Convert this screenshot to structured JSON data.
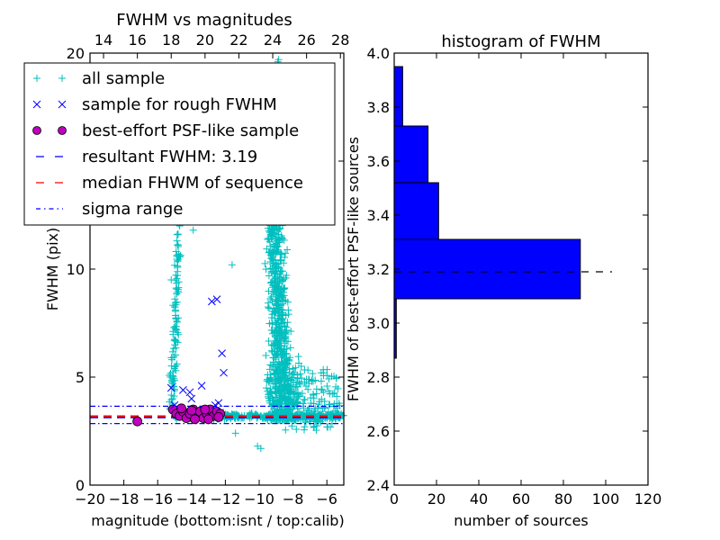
{
  "chart_data": [
    {
      "type": "scatter",
      "title": "FWHM vs magnitudes",
      "xlabel": "magnitude (bottom:isnt / top:calib)",
      "ylabel": "FWHM (pix)",
      "xlim": [
        -20,
        -5
      ],
      "ylim": [
        0,
        20
      ],
      "top_xlim": [
        13.2,
        28.2
      ],
      "xticks": [
        -20,
        -18,
        -16,
        -14,
        -12,
        -10,
        -8,
        -6
      ],
      "xtick_labels": [
        "−20",
        "−18",
        "−16",
        "−14",
        "−12",
        "−10",
        "−8",
        "−6"
      ],
      "top_xticks": [
        14,
        16,
        18,
        20,
        22,
        24,
        26,
        28
      ],
      "top_xtick_labels": [
        "14",
        "16",
        "18",
        "20",
        "22",
        "24",
        "26",
        "28"
      ],
      "yticks": [
        0,
        5,
        10,
        15,
        20
      ],
      "ytick_labels": [
        "0",
        "5",
        "10",
        "15",
        "20"
      ],
      "legend_position": "upper-left",
      "legend": [
        {
          "label": "all sample",
          "marker": "plus",
          "color": "#00bfbf"
        },
        {
          "label": "sample for rough FWHM",
          "marker": "x",
          "color": "#0000ff"
        },
        {
          "label": "best-effort PSF-like sample",
          "marker": "circle",
          "color": "#bf00bf"
        },
        {
          "label": "resultant FWHM: 3.19",
          "marker": "dashed",
          "color": "#0000ff"
        },
        {
          "label": "median FHWM of sequence",
          "marker": "dashed",
          "color": "#ff0000"
        },
        {
          "label": "sigma range",
          "marker": "dashdot",
          "color": "#0000ff"
        }
      ],
      "lines": {
        "resultant_fwhm": 3.19,
        "median_fwhm": 3.19,
        "sigma_range": [
          2.85,
          3.65
        ]
      },
      "series": [
        {
          "name": "sample for rough FWHM",
          "color": "#0000ff",
          "points": [
            [
              -12.8,
              8.5
            ],
            [
              -12.5,
              8.6
            ],
            [
              -12.2,
              6.1
            ],
            [
              -12.1,
              5.2
            ],
            [
              -15.2,
              4.5
            ],
            [
              -14.5,
              4.4
            ],
            [
              -14.0,
              4.0
            ],
            [
              -13.4,
              4.6
            ],
            [
              -14.1,
              4.3
            ],
            [
              -12.4,
              3.8
            ],
            [
              -12.6,
              3.7
            ],
            [
              -15.0,
              3.7
            ]
          ]
        },
        {
          "name": "best-effort PSF-like sample",
          "color": "#bf00bf",
          "points": [
            [
              -17.2,
              2.95
            ],
            [
              -15.1,
              3.5
            ],
            [
              -14.9,
              3.3
            ],
            [
              -14.7,
              3.2
            ],
            [
              -14.5,
              3.4
            ],
            [
              -14.3,
              3.1
            ],
            [
              -14.1,
              3.3
            ],
            [
              -13.9,
              3.5
            ],
            [
              -13.7,
              3.2
            ],
            [
              -13.5,
              3.4
            ],
            [
              -13.3,
              3.1
            ],
            [
              -13.1,
              3.3
            ],
            [
              -12.9,
              3.5
            ],
            [
              -12.7,
              3.2
            ],
            [
              -12.5,
              3.4
            ],
            [
              -12.3,
              3.3
            ],
            [
              -14.6,
              3.55
            ],
            [
              -13.8,
              3.05
            ],
            [
              -13.0,
              3.05
            ],
            [
              -12.4,
              3.15
            ],
            [
              -14.0,
              3.45
            ],
            [
              -13.2,
              3.5
            ]
          ]
        },
        {
          "name": "all sample",
          "color": "#00bfbf",
          "description": "approximately 1500 points: a narrow branch at magnitude -15.5 to -14.5 rising from FWHM 3.5 to 13, a dense cloud at magnitude -10 to -7 spanning FWHM 2.5 to 14 (few up to 20), and a horizontal sequence near FWHM 3.2 from -15 to -5",
          "clusters": [
            {
              "x_range": [
                -15.4,
                -14.4
              ],
              "y_range": [
                3.4,
                13.0
              ],
              "count": 120
            },
            {
              "x_range": [
                -10.2,
                -6.8
              ],
              "y_range": [
                3.0,
                14.0
              ],
              "count": 900
            },
            {
              "x_range": [
                -15.0,
                -5.0
              ],
              "y_range": [
                2.9,
                3.6
              ],
              "count": 400
            },
            {
              "x_range": [
                -8.5,
                -5.2
              ],
              "y_range": [
                2.4,
                5.5
              ],
              "count": 150
            }
          ]
        }
      ]
    },
    {
      "type": "bar",
      "orientation": "horizontal",
      "title": "histogram of FWHM",
      "xlabel": "number of sources",
      "ylabel": "FWHM of best-effort PSF-like sources",
      "xlim": [
        0,
        120
      ],
      "ylim": [
        2.4,
        4.0
      ],
      "xticks": [
        0,
        20,
        40,
        60,
        80,
        100,
        120
      ],
      "xtick_labels": [
        "0",
        "20",
        "40",
        "60",
        "80",
        "100",
        "120"
      ],
      "yticks": [
        2.4,
        2.6,
        2.8,
        3.0,
        3.2,
        3.4,
        3.6,
        3.8,
        4.0
      ],
      "ytick_labels": [
        "2.4",
        "2.6",
        "2.8",
        "3.0",
        "3.2",
        "3.4",
        "3.6",
        "3.8",
        "4.0"
      ],
      "bar_color": "#0000ff",
      "bins": [
        {
          "low": 2.87,
          "high": 3.09,
          "count": 1
        },
        {
          "low": 3.09,
          "high": 3.31,
          "count": 88
        },
        {
          "low": 3.31,
          "high": 3.52,
          "count": 21
        },
        {
          "low": 3.52,
          "high": 3.73,
          "count": 16
        },
        {
          "low": 3.73,
          "high": 3.95,
          "count": 4
        }
      ],
      "reference_line": {
        "y": 3.19,
        "x_extent": 103,
        "style": "dashed",
        "color": "#000000"
      }
    }
  ]
}
